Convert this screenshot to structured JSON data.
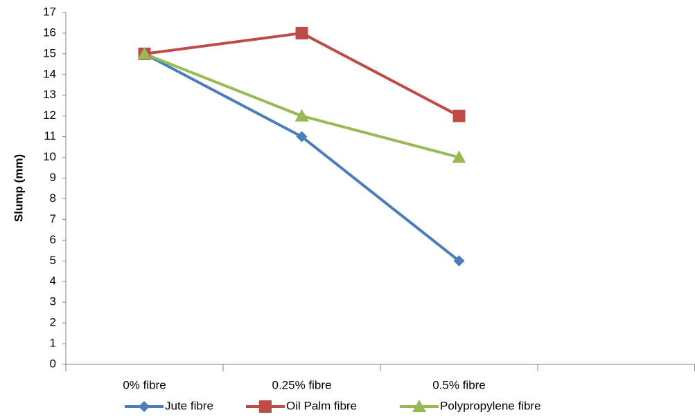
{
  "chart_data": {
    "type": "line",
    "y_label": "Slump (mm)",
    "categories": [
      "0% fibre",
      "0.25% fibre",
      "0.5% fibre",
      null
    ],
    "series": [
      {
        "name": "Jute fibre",
        "color": "#4a7ebb",
        "marker": "diamond",
        "values": [
          15,
          11,
          5,
          null
        ]
      },
      {
        "name": "Oil Palm fibre",
        "color": "#be4b48",
        "marker": "square",
        "values": [
          15,
          16,
          12,
          null
        ]
      },
      {
        "name": "Polypropylene fibre",
        "color": "#98b954",
        "marker": "triangle",
        "values": [
          15,
          12,
          10,
          null
        ]
      }
    ],
    "ylim": [
      0,
      17
    ],
    "yticks": [
      0,
      1,
      2,
      3,
      4,
      5,
      6,
      7,
      8,
      9,
      10,
      11,
      12,
      13,
      14,
      15,
      16,
      17
    ],
    "grid": false,
    "legend": "bottom"
  }
}
